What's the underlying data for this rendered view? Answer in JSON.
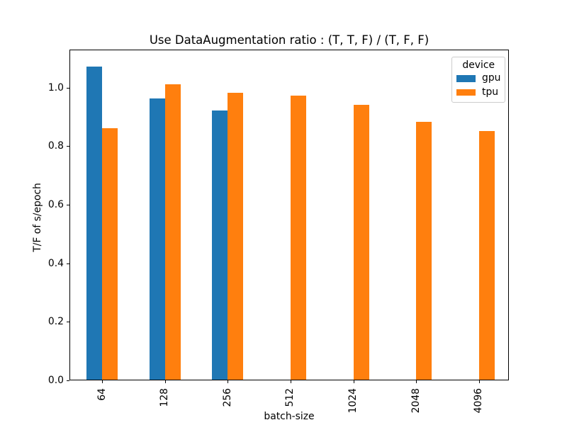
{
  "chart_data": {
    "type": "bar",
    "title": "Use DataAugmentation ratio : (T, T, F) / (T, F, F)",
    "xlabel": "batch-size",
    "ylabel": "T/F of s/epoch",
    "categories": [
      "64",
      "128",
      "256",
      "512",
      "1024",
      "2048",
      "4096"
    ],
    "series": [
      {
        "name": "gpu",
        "color": "#1f77b4",
        "values": [
          1.07,
          0.96,
          0.92,
          null,
          null,
          null,
          null
        ]
      },
      {
        "name": "tpu",
        "color": "#ff7f0e",
        "values": [
          0.86,
          1.01,
          0.98,
          0.97,
          0.94,
          0.88,
          0.85
        ]
      }
    ],
    "ylim": [
      0,
      1.13
    ],
    "yticks": [
      {
        "value": 0.0,
        "label": "0.0"
      },
      {
        "value": 0.2,
        "label": "0.2"
      },
      {
        "value": 0.4,
        "label": "0.4"
      },
      {
        "value": 0.6,
        "label": "0.6"
      },
      {
        "value": 0.8,
        "label": "0.8"
      },
      {
        "value": 1.0,
        "label": "1.0"
      }
    ],
    "legend": {
      "title": "device",
      "position": "upper right"
    },
    "grid": false,
    "xtick_rotation": 90,
    "axis_color": "#000000",
    "legend_border_color": "#cccccc"
  }
}
